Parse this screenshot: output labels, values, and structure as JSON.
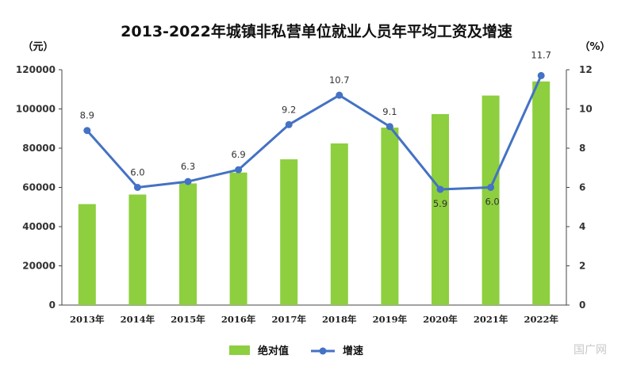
{
  "chart_data": {
    "type": "bar+line",
    "title": "2013-2022年城镇非私营单位就业人员年平均工资及增速",
    "categories": [
      "2013年",
      "2014年",
      "2015年",
      "2016年",
      "2017年",
      "2018年",
      "2019年",
      "2020年",
      "2021年",
      "2022年"
    ],
    "series": [
      {
        "name": "绝对值",
        "type": "bar",
        "axis": "left",
        "color": "#8dcf3f",
        "values": [
          51483,
          56360,
          62029,
          67569,
          74318,
          82413,
          90501,
          97379,
          106837,
          114029
        ]
      },
      {
        "name": "增速",
        "type": "line",
        "axis": "right",
        "color": "#4472c4",
        "values": [
          8.9,
          6.0,
          6.3,
          6.9,
          9.2,
          10.7,
          9.1,
          5.9,
          6.0,
          11.7
        ],
        "labels": [
          "8.9",
          "6.0",
          "6.3",
          "6.9",
          "9.2",
          "10.7",
          "9.1",
          "5.9",
          "6.0",
          "11.7"
        ]
      }
    ],
    "left_axis": {
      "unit": "（元）",
      "ylim": [
        0,
        120000
      ],
      "ticks": [
        "0",
        "20000",
        "40000",
        "60000",
        "80000",
        "100000",
        "120000"
      ]
    },
    "right_axis": {
      "unit": "（%）",
      "ylim": [
        0,
        12
      ],
      "ticks": [
        "0",
        "2",
        "4",
        "6",
        "8",
        "10",
        "12"
      ]
    },
    "legend": {
      "placement": "bottom",
      "items": [
        {
          "label": "绝对值",
          "kind": "bar"
        },
        {
          "label": "增速",
          "kind": "line"
        }
      ]
    }
  },
  "watermark": "国广网"
}
